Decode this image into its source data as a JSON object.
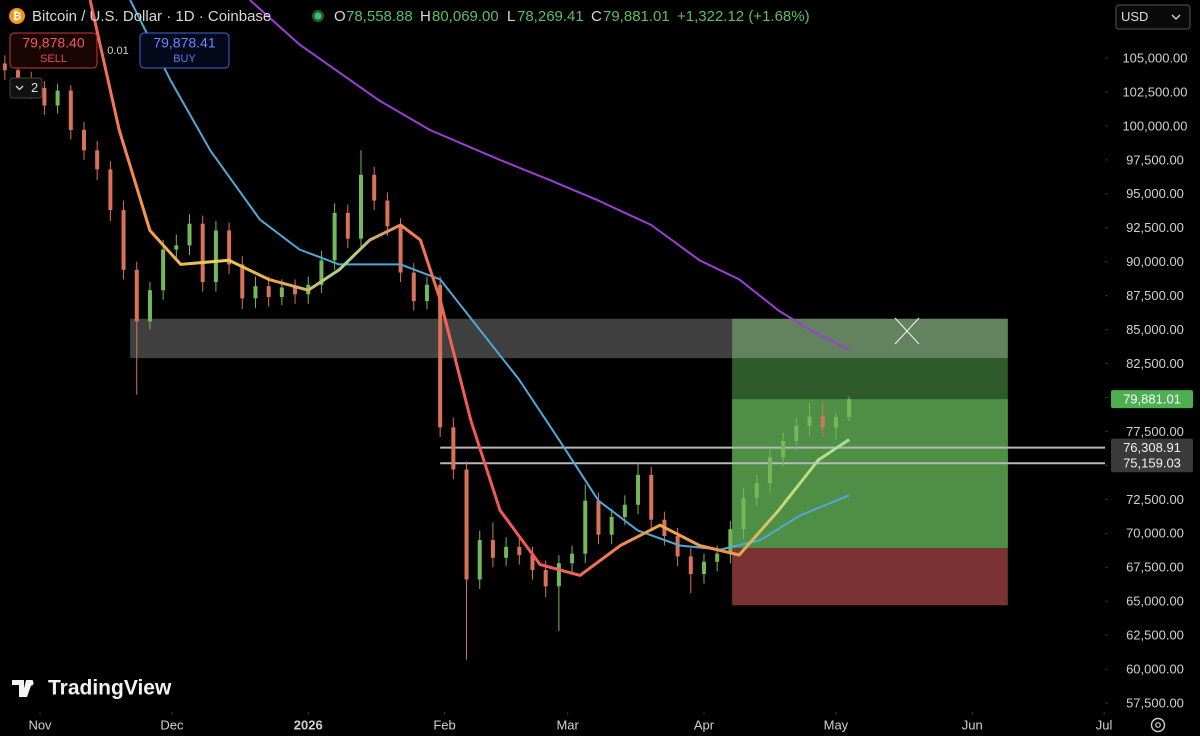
{
  "header": {
    "symbol": "Bitcoin / U.S. Dollar · 1D · Coinbase",
    "open_label": "O",
    "open": "78,558.88",
    "high_label": "H",
    "high": "80,069.00",
    "low_label": "L",
    "low": "78,269.41",
    "close_label": "C",
    "close": "79,881.01",
    "change": "+1,322.12 (+1.68%)"
  },
  "trade": {
    "sell_price": "79,878.40",
    "sell_label": "SELL",
    "spread": "0.01",
    "buy_price": "79,878.41",
    "buy_label": "BUY"
  },
  "layers_count": "2",
  "currency": "USD",
  "logo": "TradingView",
  "chart_data": {
    "type": "candlestick",
    "up_color": "#74b85a",
    "down_color": "#d8735a",
    "xlim": [
      -9.1,
      242.2
    ],
    "ylim": [
      56842,
      109271
    ],
    "xticks": [
      {
        "value": 0,
        "label": "Nov"
      },
      {
        "value": 30,
        "label": "Dec"
      },
      {
        "value": 61,
        "label": "2026"
      },
      {
        "value": 92,
        "label": "Feb"
      },
      {
        "value": 120,
        "label": "Mar"
      },
      {
        "value": 151,
        "label": "Apr"
      },
      {
        "value": 181,
        "label": "May"
      },
      {
        "value": 212,
        "label": "Jun"
      },
      {
        "value": 242,
        "label": "Jul"
      }
    ],
    "yticks": [
      {
        "value": 57500,
        "label": "57,500.00"
      },
      {
        "value": 60000,
        "label": "60,000.00"
      },
      {
        "value": 62500,
        "label": "62,500.00"
      },
      {
        "value": 65000,
        "label": "65,000.00"
      },
      {
        "value": 67500,
        "label": "67,500.00"
      },
      {
        "value": 70000,
        "label": "70,000.00"
      },
      {
        "value": 72500,
        "label": "72,500.00"
      },
      {
        "value": 75000,
        "label": "75,000.00"
      },
      {
        "value": 77500,
        "label": "77,500.00"
      },
      {
        "value": 80000,
        "label": "80,000.00"
      },
      {
        "value": 82500,
        "label": "82,500.00"
      },
      {
        "value": 85000,
        "label": "85,000.00"
      },
      {
        "value": 87500,
        "label": "87,500.00"
      },
      {
        "value": 90000,
        "label": "90,000.00"
      },
      {
        "value": 92500,
        "label": "92,500.00"
      },
      {
        "value": 95000,
        "label": "95,000.00"
      },
      {
        "value": 97500,
        "label": "97,500.00"
      },
      {
        "value": 100000,
        "label": "100,000.00"
      },
      {
        "value": 102500,
        "label": "102,500.00"
      },
      {
        "value": 105000,
        "label": "105,000.00"
      }
    ],
    "x": [
      -8,
      -5,
      -2,
      1,
      4,
      7,
      10,
      13,
      16,
      19,
      22,
      25,
      28,
      31,
      34,
      37,
      40,
      43,
      46,
      49,
      52,
      55,
      58,
      61,
      64,
      67,
      70,
      73,
      76,
      79,
      82,
      85,
      88,
      91,
      94,
      97,
      100,
      103,
      106,
      109,
      112,
      115,
      118,
      121,
      124,
      127,
      130,
      133,
      136,
      139,
      142,
      145,
      148,
      151,
      154,
      157,
      160,
      163,
      166,
      169,
      172,
      175,
      178,
      181,
      184
    ],
    "open": [
      104600,
      104100,
      103500,
      102800,
      101500,
      102600,
      99700,
      98200,
      96800,
      93800,
      89400,
      85600,
      87900,
      90900,
      91200,
      92800,
      88500,
      92300,
      89800,
      87300,
      88200,
      87400,
      88100,
      87600,
      88300,
      90100,
      93600,
      91700,
      96400,
      94500,
      92600,
      89200,
      87100,
      88300,
      77800,
      74700,
      66600,
      69500,
      68200,
      69000,
      68400,
      67300,
      66100,
      67800,
      68500,
      72400,
      69900,
      71200,
      72100,
      74300,
      71000,
      69800,
      68300,
      67000,
      67900,
      68500,
      70300,
      72600,
      73700,
      75600,
      76800,
      77900,
      78600,
      77800,
      78558.88
    ],
    "high": [
      105200,
      104700,
      104000,
      103300,
      103100,
      103000,
      100300,
      98900,
      97400,
      94500,
      90000,
      88500,
      91600,
      92000,
      93500,
      93400,
      93000,
      92900,
      90400,
      88900,
      88900,
      88700,
      88700,
      88900,
      90800,
      94300,
      94200,
      98200,
      97000,
      95100,
      93200,
      89900,
      88900,
      88900,
      78500,
      75300,
      70200,
      70800,
      69700,
      69800,
      69000,
      68000,
      68400,
      69100,
      73600,
      73000,
      71800,
      72800,
      75200,
      74900,
      71600,
      70400,
      68900,
      68500,
      69100,
      70900,
      73300,
      74300,
      76300,
      77400,
      78500,
      79600,
      79700,
      78900,
      80069
    ],
    "low": [
      103400,
      102800,
      102000,
      100800,
      100900,
      99000,
      97500,
      96000,
      93000,
      88700,
      80200,
      85000,
      87200,
      90100,
      90500,
      87800,
      87800,
      89100,
      86500,
      86600,
      86700,
      86800,
      86900,
      86900,
      87700,
      89400,
      91000,
      91000,
      93800,
      91900,
      88500,
      86400,
      86500,
      77100,
      74000,
      60700,
      65900,
      67500,
      67600,
      67700,
      66600,
      65300,
      62800,
      67100,
      67800,
      69200,
      69200,
      70600,
      71400,
      70300,
      69100,
      67600,
      65600,
      66300,
      67200,
      67800,
      69600,
      72000,
      73000,
      74900,
      76100,
      77200,
      77100,
      76900,
      78269.41
    ],
    "close": [
      104100,
      103500,
      102800,
      101500,
      102600,
      99700,
      98200,
      96800,
      93800,
      89400,
      85600,
      87900,
      90900,
      91200,
      92800,
      88500,
      92300,
      89800,
      87300,
      88200,
      87400,
      88100,
      87600,
      88300,
      90100,
      93600,
      91700,
      96400,
      94500,
      92600,
      89200,
      87100,
      88300,
      77800,
      74700,
      66600,
      69500,
      68200,
      69000,
      68400,
      67300,
      66100,
      67800,
      68500,
      72400,
      69900,
      71200,
      72100,
      74300,
      71000,
      69800,
      68300,
      67000,
      67900,
      68500,
      70300,
      72600,
      73700,
      75600,
      76800,
      77900,
      78600,
      77800,
      78558.88,
      79881.01
    ],
    "series": [
      {
        "color": "#9b3fd6",
        "x": [
          47.7,
          59,
          77,
          88.7,
          104.6,
          116,
          127,
          139,
          150,
          159,
          168,
          175,
          184
        ],
        "values": [
          109271,
          106000,
          101900,
          99700,
          97500,
          96000,
          94500,
          92700,
          90100,
          88700,
          86400,
          85000,
          83500
        ]
      },
      {
        "color": "#4fa8d8",
        "x": [
          20.5,
          29.6,
          38.7,
          50,
          59,
          68,
          82,
          91,
          100,
          109,
          118,
          127,
          136,
          145.5,
          154.7,
          163.8,
          172.8,
          184
        ],
        "values": [
          109271,
          103400,
          98200,
          93100,
          90900,
          89800,
          89800,
          88700,
          85000,
          81300,
          76900,
          72400,
          70200,
          69100,
          68800,
          69500,
          71300,
          72800
        ]
      },
      {
        "colors": [
          "#f0605a",
          "#f5a04a",
          "#e8d35a",
          "#f0a050",
          "#a8d88a",
          "#f08050",
          "#f05858",
          "#f05858",
          "#f07050",
          "#f0a848",
          "#f09048",
          "#c8d878",
          "#a8e0a0"
        ],
        "x": [
          11.4,
          18,
          25,
          32,
          43,
          52,
          61,
          68,
          75,
          82,
          86.5,
          91,
          98,
          104.6,
          113.7,
          122.8,
          132,
          141,
          150,
          159,
          168,
          177,
          184
        ],
        "values": [
          109271,
          99700,
          92300,
          89800,
          90100,
          88700,
          87900,
          89400,
          91600,
          92700,
          91600,
          87200,
          78300,
          71700,
          67700,
          66900,
          69100,
          70600,
          69100,
          68400,
          71700,
          75400,
          76900
        ]
      }
    ],
    "zone": {
      "x": [
        20.5,
        220.1
      ],
      "range": [
        82900,
        85800
      ]
    },
    "position": {
      "x": [
        157.4,
        220.1
      ],
      "target": 85800,
      "entry": 68900,
      "stop": 64700
    },
    "price_lines": [
      {
        "start": 91,
        "value": 76308.91,
        "label": "76,308.91"
      },
      {
        "start": 91,
        "value": 75159.03,
        "label": "75,159.03"
      }
    ],
    "last_price": {
      "value": 79881.01,
      "label": "79,881.01"
    }
  }
}
